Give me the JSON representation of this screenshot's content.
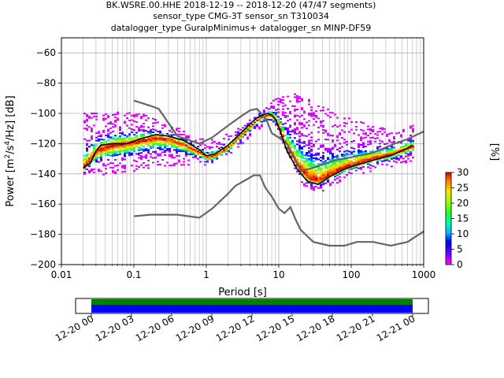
{
  "chart_data": {
    "type": "heatmap",
    "title_lines": [
      "BK.WSRE.00.HHE   2018-12-19 -- 2018-12-20  (47/47 segments)",
      "sensor_type CMG-3T sensor_sn T310034",
      "datalogger_type GuralpMinimus+ datalogger_sn MINP-DF59"
    ],
    "xlabel": "Period [s]",
    "ylabel_parts": [
      "Power [m",
      "2",
      "/s",
      "4",
      "/Hz] [dB]"
    ],
    "x_scale": "log",
    "xlim": [
      0.01,
      1000
    ],
    "ylim": [
      -200,
      -50
    ],
    "x_ticks": [
      {
        "v": 0.01,
        "label": "0.01"
      },
      {
        "v": 0.1,
        "label": "0.1"
      },
      {
        "v": 1,
        "label": "1"
      },
      {
        "v": 10,
        "label": "10"
      },
      {
        "v": 100,
        "label": "100"
      },
      {
        "v": 1000,
        "label": "1000"
      }
    ],
    "y_ticks": [
      {
        "v": -60,
        "label": "−60"
      },
      {
        "v": -80,
        "label": "−80"
      },
      {
        "v": -100,
        "label": "−100"
      },
      {
        "v": -120,
        "label": "−120"
      },
      {
        "v": -140,
        "label": "−140"
      },
      {
        "v": -160,
        "label": "−160"
      },
      {
        "v": -180,
        "label": "−180"
      },
      {
        "v": -200,
        "label": "−200"
      }
    ],
    "grid": true,
    "colorbar": {
      "label": "[%]",
      "range": [
        0,
        30
      ],
      "ticks": [
        {
          "v": 0,
          "label": "0"
        },
        {
          "v": 5,
          "label": "5"
        },
        {
          "v": 10,
          "label": "10"
        },
        {
          "v": 15,
          "label": "15"
        },
        {
          "v": 20,
          "label": "20"
        },
        {
          "v": 25,
          "label": "25"
        },
        {
          "v": 30,
          "label": "30"
        }
      ]
    },
    "nhnm": [
      [
        0.1,
        -91.5
      ],
      [
        0.17,
        -95
      ],
      [
        0.22,
        -97
      ],
      [
        0.4,
        -115
      ],
      [
        0.8,
        -120
      ],
      [
        1.2,
        -116
      ],
      [
        2,
        -108
      ],
      [
        3,
        -102
      ],
      [
        4,
        -98
      ],
      [
        5,
        -97
      ],
      [
        6,
        -101
      ],
      [
        7,
        -106
      ],
      [
        8,
        -113
      ],
      [
        10,
        -116
      ],
      [
        13,
        -120
      ],
      [
        16,
        -128
      ],
      [
        20,
        -138
      ],
      [
        30,
        -136
      ],
      [
        60,
        -131
      ],
      [
        100,
        -129
      ],
      [
        200,
        -126
      ],
      [
        400,
        -120
      ],
      [
        600,
        -117
      ],
      [
        1000,
        -112
      ]
    ],
    "nlnm": [
      [
        0.1,
        -168
      ],
      [
        0.17,
        -167
      ],
      [
        0.4,
        -167
      ],
      [
        0.8,
        -169
      ],
      [
        1.2,
        -163
      ],
      [
        2,
        -153
      ],
      [
        2.5,
        -148
      ],
      [
        3.5,
        -144
      ],
      [
        4.5,
        -141
      ],
      [
        5.5,
        -141
      ],
      [
        6.5,
        -149
      ],
      [
        8,
        -155
      ],
      [
        10,
        -163
      ],
      [
        12,
        -166
      ],
      [
        14.5,
        -162
      ],
      [
        17,
        -170
      ],
      [
        20,
        -177
      ],
      [
        30,
        -185
      ],
      [
        50,
        -187.5
      ],
      [
        80,
        -187.5
      ],
      [
        120,
        -185
      ],
      [
        200,
        -185
      ],
      [
        350,
        -187.5
      ],
      [
        600,
        -185
      ],
      [
        1000,
        -178
      ]
    ],
    "mode_curve": [
      [
        0.02,
        -136
      ],
      [
        0.025,
        -133
      ],
      [
        0.03,
        -125
      ],
      [
        0.035,
        -121
      ],
      [
        0.05,
        -120
      ],
      [
        0.08,
        -120
      ],
      [
        0.12,
        -117
      ],
      [
        0.2,
        -114
      ],
      [
        0.3,
        -115
      ],
      [
        0.5,
        -118
      ],
      [
        0.8,
        -124
      ],
      [
        1,
        -128
      ],
      [
        1.3,
        -127
      ],
      [
        2,
        -121
      ],
      [
        3,
        -113
      ],
      [
        4,
        -107
      ],
      [
        5,
        -103
      ],
      [
        6,
        -101
      ],
      [
        7,
        -100
      ],
      [
        8,
        -101
      ],
      [
        9,
        -104
      ],
      [
        10,
        -109
      ],
      [
        13,
        -125
      ],
      [
        18,
        -137
      ],
      [
        25,
        -145
      ],
      [
        35,
        -147
      ],
      [
        50,
        -142
      ],
      [
        80,
        -137
      ],
      [
        120,
        -134
      ],
      [
        200,
        -131
      ],
      [
        350,
        -128
      ],
      [
        600,
        -123
      ],
      [
        700,
        -121
      ]
    ],
    "ppsd_ridge": [
      [
        0.02,
        -136
      ],
      [
        0.03,
        -125
      ],
      [
        0.05,
        -121
      ],
      [
        0.08,
        -120
      ],
      [
        0.12,
        -118
      ],
      [
        0.2,
        -116
      ],
      [
        0.3,
        -117
      ],
      [
        0.5,
        -121
      ],
      [
        0.8,
        -126
      ],
      [
        1,
        -129
      ],
      [
        1.3,
        -128
      ],
      [
        2,
        -122
      ],
      [
        3,
        -114
      ],
      [
        4,
        -108
      ],
      [
        5,
        -104
      ],
      [
        6,
        -102
      ],
      [
        7,
        -101
      ],
      [
        8,
        -102
      ],
      [
        9,
        -105
      ],
      [
        10,
        -110
      ],
      [
        13,
        -124
      ],
      [
        18,
        -136
      ],
      [
        25,
        -143
      ],
      [
        35,
        -145
      ],
      [
        50,
        -141
      ],
      [
        80,
        -136
      ],
      [
        120,
        -133
      ],
      [
        200,
        -130
      ],
      [
        350,
        -127
      ],
      [
        700,
        -122
      ]
    ],
    "upper_spread": [
      [
        0.04,
        -100
      ],
      [
        0.06,
        -99
      ],
      [
        0.1,
        -100
      ],
      [
        0.15,
        -101
      ],
      [
        0.2,
        -103
      ],
      [
        0.3,
        -107
      ],
      [
        0.5,
        -112
      ],
      [
        1,
        -118
      ],
      [
        2,
        -113
      ],
      [
        3,
        -108
      ],
      [
        5,
        -100
      ],
      [
        8,
        -91
      ],
      [
        12,
        -88
      ],
      [
        18,
        -87
      ],
      [
        30,
        -93
      ],
      [
        60,
        -100
      ],
      [
        100,
        -104
      ],
      [
        200,
        -108
      ],
      [
        400,
        -112
      ],
      [
        700,
        -107
      ]
    ],
    "lower_spread": [
      [
        0.02,
        -140
      ],
      [
        0.03,
        -140
      ],
      [
        0.05,
        -141
      ],
      [
        0.1,
        -138
      ],
      [
        0.2,
        -135
      ],
      [
        0.4,
        -134
      ],
      [
        0.8,
        -134
      ],
      [
        1,
        -134
      ],
      [
        2,
        -127
      ],
      [
        3,
        -120
      ],
      [
        5,
        -111
      ],
      [
        7,
        -104
      ],
      [
        9,
        -108
      ],
      [
        12,
        -125
      ],
      [
        18,
        -142
      ],
      [
        25,
        -152
      ],
      [
        40,
        -151
      ],
      [
        80,
        -143
      ],
      [
        150,
        -139
      ],
      [
        300,
        -136
      ],
      [
        700,
        -131
      ]
    ]
  },
  "time_axis": {
    "ticks": [
      "12-20 00",
      "12-20 03",
      "12-20 06",
      "12-20 09",
      "12-20 12",
      "12-20 15",
      "12-20 18",
      "12-20 21",
      "12-21 00"
    ],
    "bar_colors": {
      "coverage": "#0000ff",
      "gapless": "#008000"
    }
  }
}
